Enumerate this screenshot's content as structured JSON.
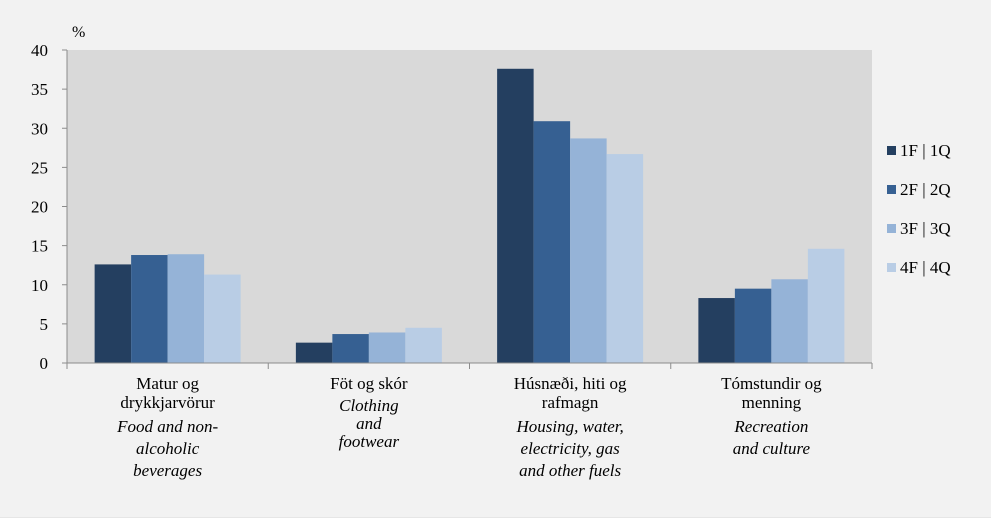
{
  "chart_data": {
    "type": "bar",
    "y_unit_label": "%",
    "ylim": [
      0,
      40
    ],
    "yticks": [
      0,
      5,
      10,
      15,
      20,
      25,
      30,
      35,
      40
    ],
    "grid": false,
    "legend_placement": "right",
    "categories": [
      {
        "is_lines": [
          "Matur og",
          "drykkjarvörur"
        ],
        "en_lines": [
          "Food and non-",
          "alcoholic",
          "beverages"
        ]
      },
      {
        "is_lines": [
          "Föt og skór"
        ],
        "en_lines": [
          "Clothing",
          "and",
          "footwear"
        ]
      },
      {
        "is_lines": [
          "Húsnæði, hiti og",
          "rafmagn"
        ],
        "en_lines": [
          "Housing, water,",
          "electricity, gas",
          "and other fuels"
        ]
      },
      {
        "is_lines": [
          "Tómstundir og",
          "menning"
        ],
        "en_lines": [
          "Recreation",
          "and culture"
        ]
      }
    ],
    "series": [
      {
        "name": "1F | 1Q",
        "color": "#243f60",
        "values": [
          12.6,
          2.6,
          37.6,
          8.3
        ]
      },
      {
        "name": "2F | 2Q",
        "color": "#366092",
        "values": [
          13.8,
          3.7,
          30.9,
          9.5
        ]
      },
      {
        "name": "3F | 3Q",
        "color": "#95b3d7",
        "values": [
          13.9,
          3.9,
          28.7,
          10.7
        ]
      },
      {
        "name": "4F | 4Q",
        "color": "#b9cde5",
        "values": [
          11.3,
          4.5,
          26.7,
          14.6
        ]
      }
    ],
    "colors": {
      "plot_background": "#d9d9d9",
      "chart_background": "#f2f2f2"
    }
  }
}
